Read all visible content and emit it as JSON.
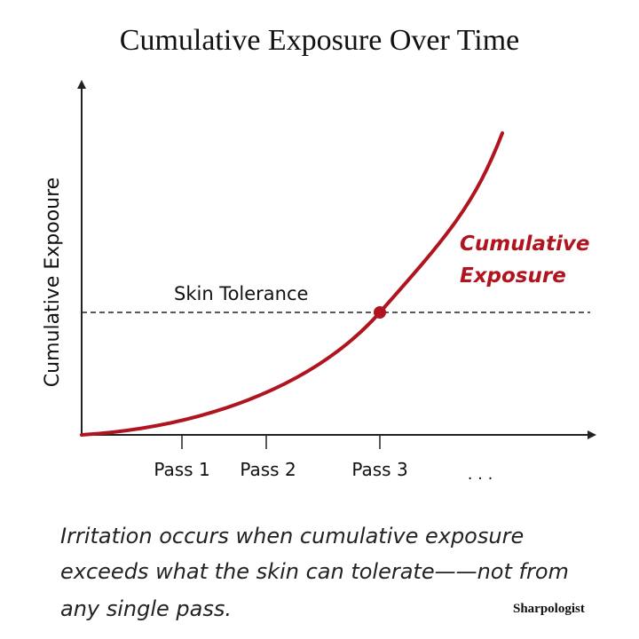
{
  "title": "Cumulative Exposure Over Time",
  "y_axis_label": "Cumulative Expooure",
  "tolerance_label": "Skin Tolerance",
  "curve_label": [
    "Cumulative",
    "Exposure"
  ],
  "x_labels": [
    "Pass 1",
    "Pass 2",
    "Pass 3",
    ". . ."
  ],
  "caption": [
    "Irritation occurs when cumulative exposure",
    "exceeds what the skin can tolerate——not from",
    "any single pass."
  ],
  "logo": "Sharpologist"
}
